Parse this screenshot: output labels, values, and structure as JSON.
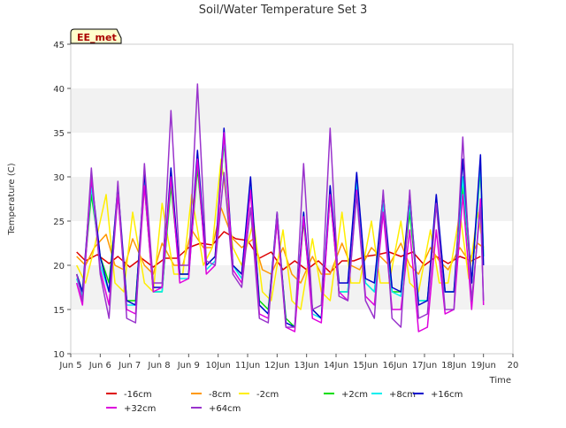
{
  "chart_data": {
    "type": "line",
    "title": "Soil/Water Temperature Set 3",
    "xlabel": "Time",
    "ylabel": "Temperature (C)",
    "station_label": "EE_met",
    "xlim": [
      5,
      20
    ],
    "ylim": [
      10,
      45
    ],
    "x_ticks": [
      5,
      6,
      7,
      8,
      9,
      10,
      11,
      12,
      13,
      14,
      15,
      16,
      17,
      18,
      19,
      20
    ],
    "x_tick_labels": [
      "Jun 5",
      "Jun 6",
      "Jun 7",
      "Jun 8",
      "Jun 9",
      "10Jun",
      "11Jun",
      "12Jun",
      "13Jun",
      "14Jun",
      "15Jun",
      "16Jun",
      "17Jun",
      "18Jun",
      "19Jun",
      "20"
    ],
    "y_ticks": [
      10,
      15,
      20,
      25,
      30,
      35,
      40,
      45
    ],
    "y_tick_labels": [
      "10",
      "15",
      "20",
      "25",
      "30",
      "35",
      "40",
      "45"
    ],
    "grid": "horizontal bands",
    "legend_position": "bottom",
    "colors": {
      "-16cm": "#dd0000",
      "-8cm": "#ff9900",
      "-2cm": "#ffee00",
      "+2cm": "#00dd00",
      "+8cm": "#00eeee",
      "+16cm": "#0000cc",
      "+32cm": "#dd00dd",
      "+64cm": "#9933cc"
    },
    "series": [
      {
        "name": "-16cm",
        "x": [
          5.2,
          5.5,
          5.9,
          6.3,
          6.6,
          7.0,
          7.4,
          7.8,
          8.2,
          8.6,
          9.0,
          9.4,
          9.8,
          10.2,
          10.6,
          11.0,
          11.4,
          11.8,
          12.2,
          12.6,
          13.0,
          13.4,
          13.8,
          14.2,
          14.6,
          15.0,
          15.4,
          15.8,
          16.2,
          16.6,
          17.0,
          17.4,
          17.8,
          18.2,
          18.6,
          18.9
        ],
        "values": [
          21.5,
          20.5,
          21.2,
          20.2,
          21.0,
          19.8,
          20.8,
          19.8,
          20.8,
          20.8,
          22.0,
          22.5,
          22.3,
          23.8,
          23.0,
          22.8,
          20.8,
          21.5,
          19.5,
          20.5,
          19.5,
          20.5,
          19.2,
          20.5,
          20.5,
          21.0,
          21.2,
          21.5,
          21.0,
          21.5,
          20.0,
          21.0,
          20.2,
          21.0,
          20.5,
          21.0
        ]
      },
      {
        "name": "-8cm",
        "x": [
          5.2,
          5.5,
          5.8,
          6.2,
          6.5,
          6.8,
          7.1,
          7.5,
          7.8,
          8.1,
          8.5,
          8.8,
          9.1,
          9.5,
          9.8,
          10.1,
          10.5,
          10.8,
          11.2,
          11.5,
          11.8,
          12.2,
          12.5,
          12.8,
          13.2,
          13.5,
          13.8,
          14.2,
          14.5,
          14.8,
          15.2,
          15.5,
          15.8,
          16.2,
          16.5,
          16.8,
          17.2,
          17.5,
          17.8,
          18.2,
          18.5,
          18.8,
          19.0
        ],
        "values": [
          21.0,
          20.0,
          22.0,
          23.5,
          20.0,
          19.5,
          23.0,
          20.0,
          19.0,
          22.5,
          20.0,
          20.0,
          24.0,
          22.0,
          22.0,
          26.5,
          23.0,
          22.0,
          23.0,
          19.5,
          19.0,
          22.0,
          19.0,
          18.0,
          21.0,
          19.0,
          19.0,
          22.5,
          20.0,
          19.5,
          22.0,
          21.0,
          20.0,
          22.5,
          20.0,
          19.0,
          22.0,
          20.5,
          19.5,
          22.0,
          20.5,
          22.5,
          22.0
        ]
      },
      {
        "name": "-2cm",
        "x": [
          5.2,
          5.5,
          5.8,
          6.2,
          6.5,
          6.8,
          7.1,
          7.5,
          7.8,
          8.1,
          8.5,
          8.8,
          9.1,
          9.5,
          9.8,
          10.1,
          10.5,
          10.8,
          11.2,
          11.5,
          11.8,
          12.2,
          12.5,
          12.8,
          13.2,
          13.5,
          13.8,
          14.2,
          14.5,
          14.8,
          15.2,
          15.5,
          15.8,
          16.2,
          16.5,
          16.8,
          17.2,
          17.5,
          17.8,
          18.2,
          18.5,
          18.8,
          19.0
        ],
        "values": [
          20.0,
          18.0,
          22.0,
          28.0,
          18.0,
          17.0,
          26.0,
          18.0,
          17.0,
          27.0,
          19.0,
          19.0,
          28.0,
          20.0,
          22.0,
          32.0,
          22.0,
          20.0,
          25.0,
          17.0,
          16.0,
          24.0,
          16.0,
          15.0,
          23.0,
          17.0,
          16.0,
          26.0,
          18.0,
          18.0,
          25.0,
          18.0,
          18.0,
          25.0,
          18.0,
          17.0,
          24.0,
          18.0,
          18.0,
          26.0,
          18.5,
          26.0,
          22.0
        ]
      },
      {
        "name": "+2cm",
        "x": [
          5.2,
          5.4,
          5.7,
          6.0,
          6.3,
          6.6,
          6.9,
          7.2,
          7.5,
          7.8,
          8.1,
          8.4,
          8.7,
          9.0,
          9.3,
          9.6,
          9.9,
          10.2,
          10.5,
          10.8,
          11.1,
          11.4,
          11.7,
          12.0,
          12.3,
          12.6,
          12.9,
          13.2,
          13.5,
          13.8,
          14.1,
          14.4,
          14.7,
          15.0,
          15.3,
          15.6,
          15.9,
          16.2,
          16.5,
          16.8,
          17.1,
          17.4,
          17.7,
          18.0,
          18.3,
          18.6,
          18.9,
          19.0
        ],
        "values": [
          19.0,
          17.0,
          28.0,
          21.0,
          18.0,
          28.0,
          16.0,
          16.0,
          29.0,
          17.0,
          17.0,
          29.0,
          19.0,
          19.0,
          31.0,
          20.0,
          21.0,
          34.0,
          20.0,
          19.0,
          29.0,
          16.0,
          15.0,
          25.0,
          14.0,
          13.0,
          25.0,
          15.0,
          14.0,
          28.0,
          17.0,
          17.0,
          29.0,
          18.0,
          17.0,
          26.0,
          17.0,
          17.0,
          26.0,
          16.0,
          16.0,
          27.0,
          17.0,
          17.0,
          29.0,
          18.0,
          31.0,
          21.0
        ]
      },
      {
        "name": "+8cm",
        "x": [
          5.2,
          5.4,
          5.7,
          6.0,
          6.3,
          6.6,
          6.9,
          7.2,
          7.5,
          7.8,
          8.1,
          8.4,
          8.7,
          9.0,
          9.3,
          9.6,
          9.9,
          10.2,
          10.5,
          10.8,
          11.1,
          11.4,
          11.7,
          12.0,
          12.3,
          12.6,
          12.9,
          13.2,
          13.5,
          13.8,
          14.1,
          14.4,
          14.7,
          15.0,
          15.3,
          15.6,
          15.9,
          16.2,
          16.5,
          16.8,
          17.1,
          17.4,
          17.7,
          18.0,
          18.3,
          18.6,
          18.9,
          19.0
        ],
        "values": [
          18.5,
          16.5,
          29.0,
          20.0,
          17.0,
          28.5,
          15.5,
          15.5,
          30.0,
          17.0,
          17.0,
          30.0,
          18.5,
          18.5,
          32.0,
          19.5,
          20.5,
          34.5,
          20.0,
          18.5,
          29.5,
          15.5,
          14.5,
          25.5,
          13.5,
          13.0,
          26.0,
          14.5,
          14.0,
          28.5,
          17.0,
          17.0,
          29.5,
          18.0,
          17.0,
          27.0,
          17.0,
          16.5,
          27.0,
          16.0,
          16.0,
          27.5,
          17.0,
          17.0,
          30.0,
          18.0,
          31.5,
          21.0
        ]
      },
      {
        "name": "+16cm",
        "x": [
          5.2,
          5.4,
          5.7,
          6.0,
          6.3,
          6.6,
          6.9,
          7.2,
          7.5,
          7.8,
          8.1,
          8.4,
          8.7,
          9.0,
          9.3,
          9.6,
          9.9,
          10.2,
          10.5,
          10.8,
          11.1,
          11.4,
          11.7,
          12.0,
          12.3,
          12.6,
          12.9,
          13.2,
          13.5,
          13.8,
          14.1,
          14.4,
          14.7,
          15.0,
          15.3,
          15.6,
          15.9,
          16.2,
          16.5,
          16.8,
          17.1,
          17.4,
          17.7,
          18.0,
          18.3,
          18.6,
          18.9,
          19.0
        ],
        "values": [
          19.0,
          17.0,
          30.0,
          21.0,
          17.0,
          29.0,
          16.0,
          15.5,
          30.5,
          17.5,
          17.5,
          31.0,
          19.0,
          19.0,
          33.0,
          20.0,
          21.0,
          35.5,
          20.0,
          19.0,
          30.0,
          15.5,
          14.5,
          26.0,
          13.5,
          13.0,
          26.0,
          15.0,
          14.0,
          29.0,
          18.0,
          18.0,
          30.5,
          18.5,
          18.0,
          28.0,
          17.5,
          17.0,
          28.0,
          15.5,
          16.0,
          28.0,
          17.0,
          17.0,
          32.0,
          18.0,
          32.5,
          20.0
        ]
      },
      {
        "name": "+32cm",
        "x": [
          5.2,
          5.4,
          5.7,
          6.0,
          6.3,
          6.6,
          6.9,
          7.2,
          7.5,
          7.8,
          8.1,
          8.4,
          8.7,
          9.0,
          9.3,
          9.6,
          9.9,
          10.2,
          10.5,
          10.8,
          11.1,
          11.4,
          11.7,
          12.0,
          12.3,
          12.6,
          12.9,
          13.2,
          13.5,
          13.8,
          14.1,
          14.4,
          14.7,
          15.0,
          15.3,
          15.6,
          15.9,
          16.2,
          16.5,
          16.8,
          17.1,
          17.4,
          17.7,
          18.0,
          18.3,
          18.6,
          18.9,
          19.0
        ],
        "values": [
          18.0,
          15.5,
          30.0,
          19.5,
          15.5,
          28.0,
          15.0,
          14.5,
          29.0,
          17.0,
          17.5,
          30.0,
          18.0,
          18.5,
          32.0,
          19.0,
          20.0,
          35.0,
          19.5,
          18.0,
          28.5,
          14.5,
          14.0,
          25.0,
          13.0,
          12.5,
          25.5,
          14.0,
          13.5,
          28.0,
          17.0,
          16.0,
          28.5,
          16.5,
          15.5,
          26.0,
          15.0,
          15.0,
          24.0,
          12.5,
          13.0,
          24.0,
          14.5,
          15.0,
          28.0,
          15.0,
          27.5,
          15.5
        ]
      },
      {
        "name": "+64cm",
        "x": [
          5.2,
          5.4,
          5.7,
          6.0,
          6.3,
          6.6,
          6.9,
          7.2,
          7.5,
          7.8,
          8.1,
          8.4,
          8.7,
          9.0,
          9.3,
          9.6,
          9.9,
          10.2,
          10.5,
          10.8,
          11.1,
          11.4,
          11.7,
          12.0,
          12.3,
          12.6,
          12.9,
          13.2,
          13.5,
          13.8,
          14.1,
          14.4,
          14.7,
          15.0,
          15.3,
          15.6,
          15.9,
          16.2,
          16.5,
          16.8,
          17.1,
          17.4,
          17.7,
          18.0,
          18.3,
          18.6,
          18.9,
          19.0
        ],
        "values": [
          19.0,
          16.0,
          31.0,
          19.0,
          14.0,
          29.5,
          14.0,
          13.5,
          31.5,
          18.0,
          18.0,
          37.5,
          20.0,
          20.0,
          40.5,
          20.5,
          20.0,
          30.5,
          19.0,
          17.5,
          26.5,
          14.0,
          13.5,
          26.0,
          13.0,
          13.0,
          31.5,
          15.0,
          15.5,
          35.5,
          16.5,
          16.0,
          28.0,
          16.0,
          14.0,
          28.5,
          14.0,
          13.0,
          28.5,
          14.0,
          14.5,
          27.0,
          15.0,
          15.0,
          34.5,
          16.0,
          26.5,
          16.0
        ]
      }
    ]
  }
}
